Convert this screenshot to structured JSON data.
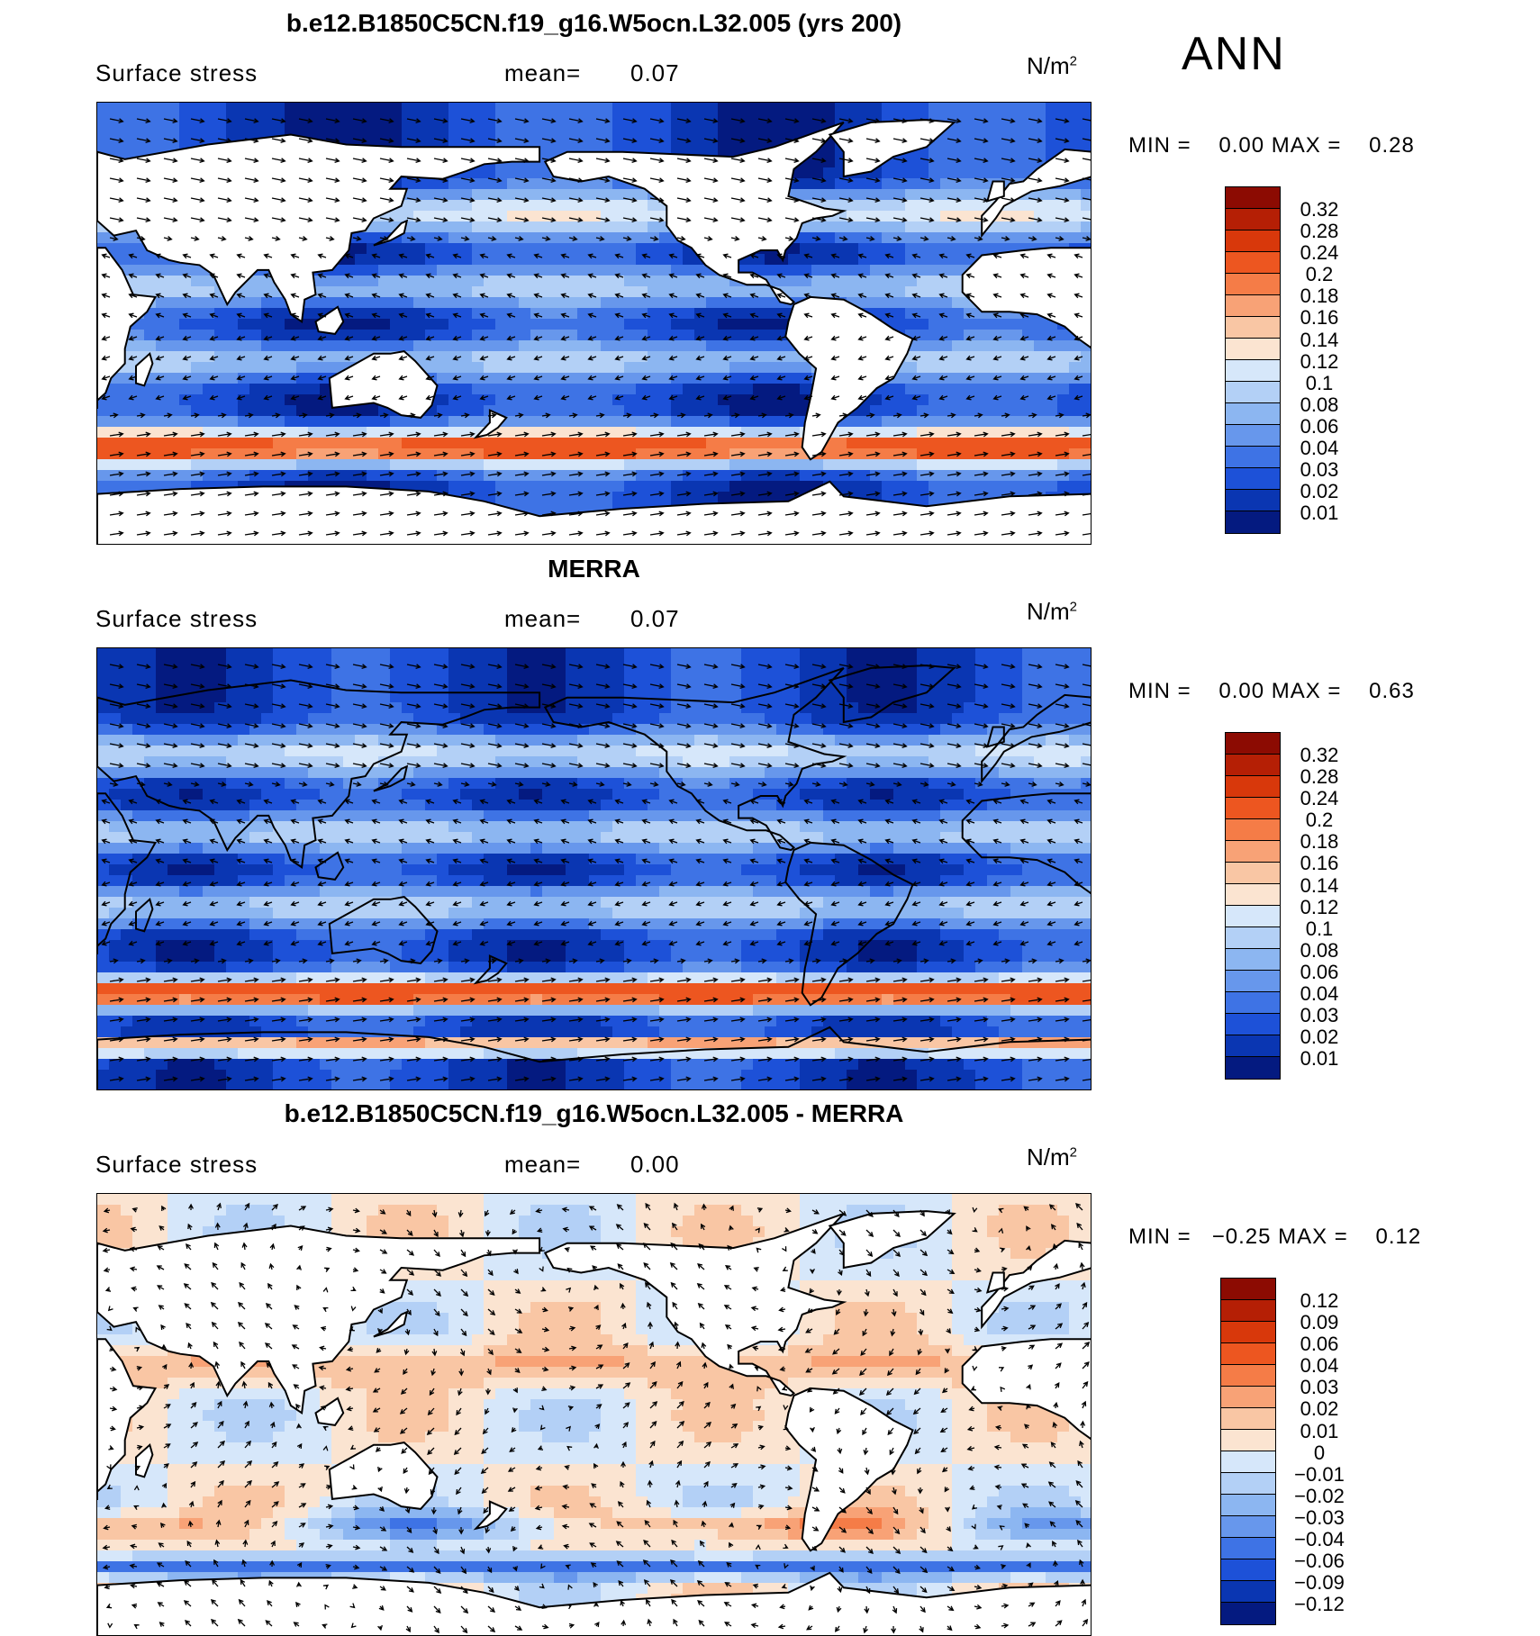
{
  "season": "ANN",
  "palette": {
    "positive": [
      "#f9e1cc",
      "#f8c5a5",
      "#f7a67c",
      "#f5814f",
      "#ef5c22",
      "#de3a0c",
      "#bd2306",
      "#8c0b02"
    ],
    "negative": [
      "#d2e7fa",
      "#a9cdf4",
      "#7eb0ef",
      "#5290ea",
      "#2d6ee3",
      "#134fd5",
      "#0a38b5",
      "#041d84"
    ],
    "land": "#ffffff",
    "coast": "#000000"
  },
  "panels": [
    {
      "title": "b.e12.B1850C5CN.f19_g16.W5ocn.L32.005 (yrs 200)",
      "variable": "Surface stress",
      "mean_label": "mean=",
      "mean_value": "0.07",
      "units": "N/m",
      "units_sup": "2",
      "min_label": "MIN =",
      "min_value": "0.00",
      "max_label": "MAX =",
      "max_value": "0.28",
      "levels": [
        "0.32",
        "0.28",
        "0.24",
        "0.2",
        "0.18",
        "0.16",
        "0.14",
        "0.12",
        "0.1",
        "0.08",
        "0.06",
        "0.04",
        "0.03",
        "0.02",
        "0.01"
      ],
      "colors": [
        "#8c0b02",
        "#b51f05",
        "#d8380b",
        "#ed5620",
        "#f57c47",
        "#f8a276",
        "#f9c6a4",
        "#fbe4d1",
        "#d6e7fa",
        "#b3d0f6",
        "#8cb6f1",
        "#6797ec",
        "#3e73e5",
        "#1d51d8",
        "#0a36b2",
        "#041a80"
      ]
    },
    {
      "title": "MERRA",
      "variable": "Surface stress",
      "mean_label": "mean=",
      "mean_value": "0.07",
      "units": "N/m",
      "units_sup": "2",
      "min_label": "MIN =",
      "min_value": "0.00",
      "max_label": "MAX =",
      "max_value": "0.63",
      "levels": [
        "0.32",
        "0.28",
        "0.24",
        "0.2",
        "0.18",
        "0.16",
        "0.14",
        "0.12",
        "0.1",
        "0.08",
        "0.06",
        "0.04",
        "0.03",
        "0.02",
        "0.01"
      ],
      "colors": [
        "#8c0b02",
        "#b51f05",
        "#d8380b",
        "#ed5620",
        "#f57c47",
        "#f8a276",
        "#f9c6a4",
        "#fbe4d1",
        "#d6e7fa",
        "#b3d0f6",
        "#8cb6f1",
        "#6797ec",
        "#3e73e5",
        "#1d51d8",
        "#0a36b2",
        "#041a80"
      ]
    },
    {
      "title": "b.e12.B1850C5CN.f19_g16.W5ocn.L32.005 - MERRA",
      "variable": "Surface stress",
      "mean_label": "mean=",
      "mean_value": "0.00",
      "units": "N/m",
      "units_sup": "2",
      "min_label": "MIN =",
      "min_value": "−0.25",
      "max_label": "MAX =",
      "max_value": "0.12",
      "levels": [
        "0.12",
        "0.09",
        "0.06",
        "0.04",
        "0.03",
        "0.02",
        "0.01",
        "0",
        "−0.01",
        "−0.02",
        "−0.03",
        "−0.04",
        "−0.06",
        "−0.09",
        "−0.12"
      ],
      "colors": [
        "#8c0b02",
        "#b51f05",
        "#d8380b",
        "#ed5620",
        "#f57c47",
        "#f8a276",
        "#f9c6a4",
        "#fbe4d1",
        "#d6e7fa",
        "#b3d0f6",
        "#8cb6f1",
        "#6797ec",
        "#3e73e5",
        "#1d51d8",
        "#0a36b2",
        "#041a80"
      ]
    }
  ]
}
